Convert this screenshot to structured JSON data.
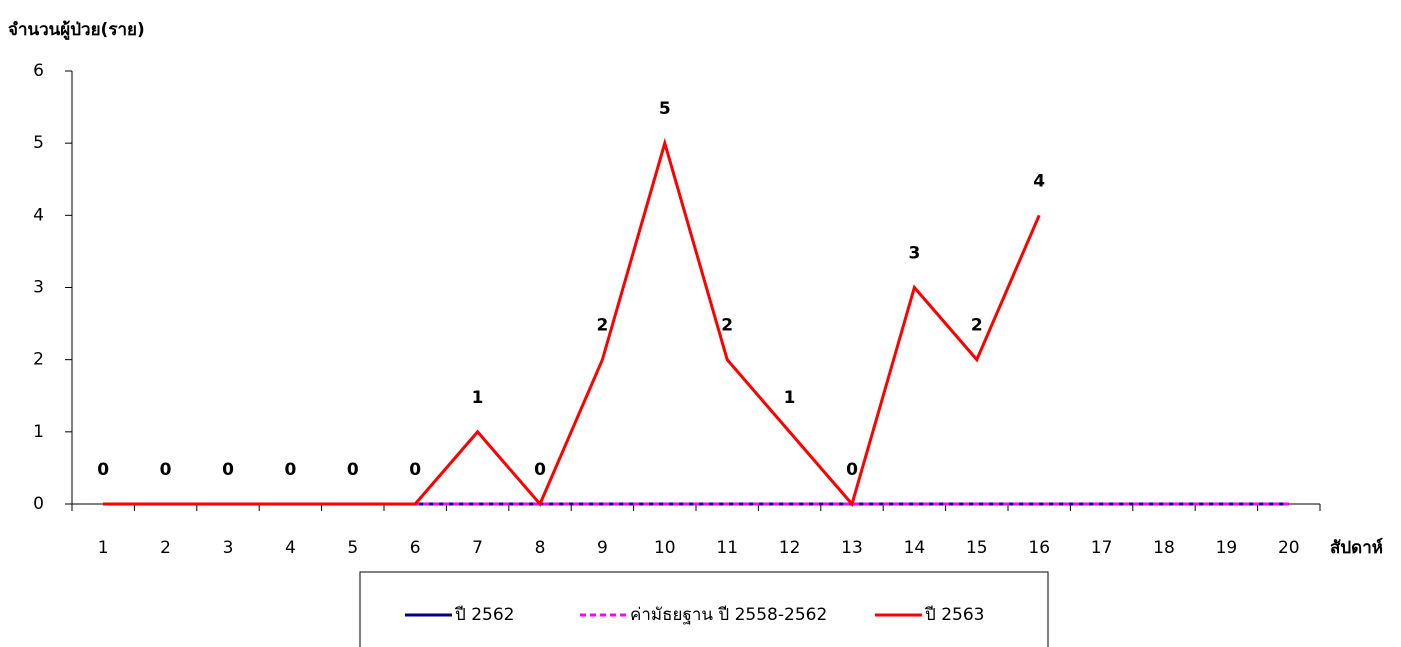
{
  "chart_data": {
    "type": "line",
    "y_label": "จำนวนผู้ป่วย(ราย)",
    "x_label": "สัปดาห์",
    "categories": [
      "1",
      "2",
      "3",
      "4",
      "5",
      "6",
      "7",
      "8",
      "9",
      "10",
      "11",
      "12",
      "13",
      "14",
      "15",
      "16",
      "17",
      "18",
      "19",
      "20"
    ],
    "ylim": [
      0,
      6
    ],
    "yticks": [
      0,
      1,
      2,
      3,
      4,
      5,
      6
    ],
    "grid": false,
    "series": [
      {
        "name": "ปี 2562",
        "color": "#000080",
        "dash": false,
        "values": [
          0,
          0,
          0,
          0,
          0,
          0,
          0,
          0,
          0,
          0,
          0,
          0,
          0,
          0,
          0,
          0,
          0,
          0,
          0,
          0
        ]
      },
      {
        "name": "ค่ามัธยฐาน ปี 2558-2562",
        "color": "#ff00ff",
        "dash": true,
        "values": [
          0,
          0,
          0,
          0,
          0,
          0,
          0,
          0,
          0,
          0,
          0,
          0,
          0,
          0,
          0,
          0,
          0,
          0,
          0,
          0
        ]
      },
      {
        "name": "ปี 2563",
        "color": "#ff0000",
        "dash": false,
        "data_labels": true,
        "values": [
          0,
          0,
          0,
          0,
          0,
          0,
          1,
          0,
          2,
          5,
          2,
          1,
          0,
          3,
          2,
          4,
          null,
          null,
          null,
          null
        ]
      }
    ],
    "legend": "bottom"
  }
}
